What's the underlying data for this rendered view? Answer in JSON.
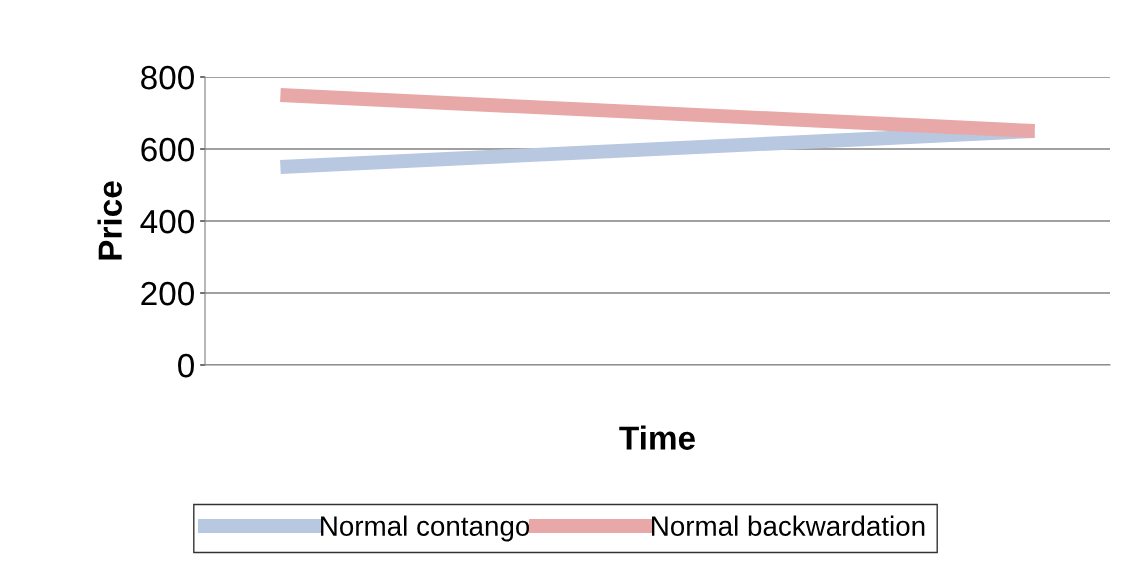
{
  "chart_data": {
    "type": "line",
    "xlabel": "Time",
    "ylabel": "Price",
    "categories": [
      null,
      null,
      null,
      null,
      null,
      null
    ],
    "series": [
      {
        "name": "Normal contango",
        "color": "#b8c8e0",
        "values": [
          550,
          570,
          590,
          610,
          630,
          650
        ]
      },
      {
        "name": "Normal backwardation",
        "color": "#e8a8a8",
        "values": [
          750,
          730,
          710,
          690,
          670,
          650
        ]
      }
    ],
    "ylim": [
      0,
      800
    ],
    "yticks": [
      0,
      200,
      400,
      600,
      800
    ],
    "grid": "y",
    "legend": "bottom",
    "marker": "none",
    "line_style": "solid"
  }
}
